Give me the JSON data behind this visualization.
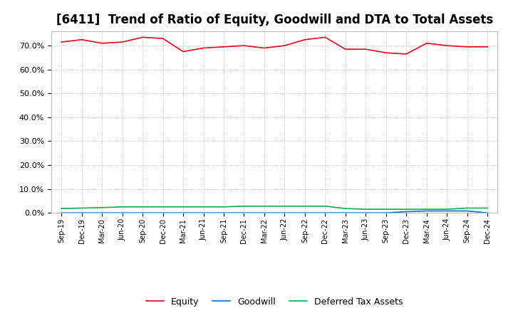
{
  "title": "[6411]  Trend of Ratio of Equity, Goodwill and DTA to Total Assets",
  "x_labels": [
    "Sep-19",
    "Dec-19",
    "Mar-20",
    "Jun-20",
    "Sep-20",
    "Dec-20",
    "Mar-21",
    "Jun-21",
    "Sep-21",
    "Dec-21",
    "Mar-22",
    "Jun-22",
    "Sep-22",
    "Dec-22",
    "Mar-23",
    "Jun-23",
    "Sep-23",
    "Dec-23",
    "Mar-24",
    "Jun-24",
    "Sep-24",
    "Dec-24"
  ],
  "equity": [
    71.5,
    72.5,
    71.0,
    71.5,
    73.5,
    73.0,
    67.5,
    69.0,
    69.5,
    70.0,
    69.0,
    70.0,
    72.5,
    73.5,
    68.5,
    68.5,
    67.0,
    66.5,
    71.0,
    70.0,
    69.5,
    69.5
  ],
  "goodwill": [
    0.0,
    0.0,
    0.0,
    0.0,
    0.0,
    0.0,
    0.0,
    0.0,
    0.0,
    0.0,
    0.0,
    0.0,
    0.0,
    0.0,
    0.0,
    0.0,
    0.0,
    0.5,
    0.8,
    0.8,
    0.8,
    0.0
  ],
  "dta": [
    1.8,
    2.0,
    2.2,
    2.5,
    2.5,
    2.5,
    2.5,
    2.5,
    2.5,
    2.8,
    2.8,
    2.8,
    2.8,
    2.8,
    1.8,
    1.5,
    1.5,
    1.5,
    1.5,
    1.5,
    2.0,
    2.0
  ],
  "equity_color": "#e8001c",
  "goodwill_color": "#0070c0",
  "dta_color": "#00b050",
  "background_color": "#ffffff",
  "grid_color": "#aaaaaa",
  "ylim": [
    0,
    76
  ],
  "yticks": [
    0,
    10,
    20,
    30,
    40,
    50,
    60,
    70
  ],
  "title_fontsize": 12,
  "legend_labels": [
    "Equity",
    "Goodwill",
    "Deferred Tax Assets"
  ]
}
